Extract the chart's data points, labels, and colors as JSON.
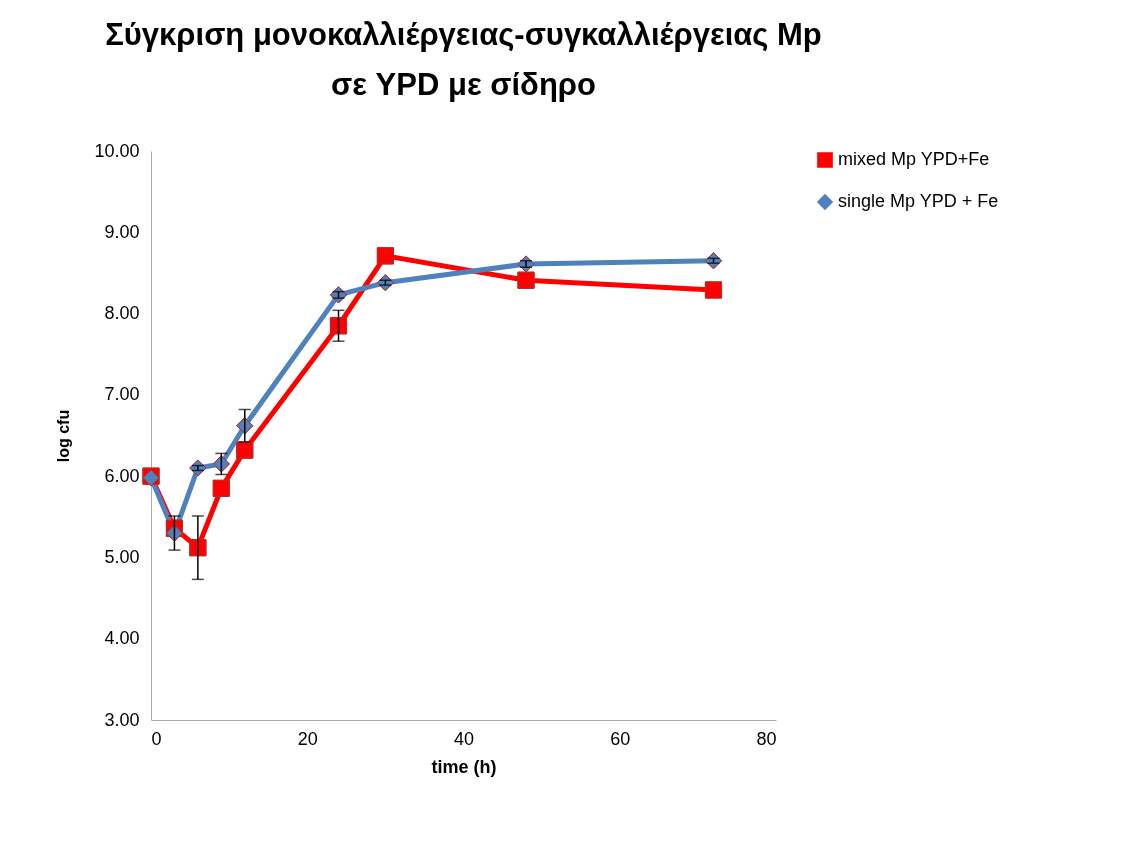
{
  "chart_data": {
    "type": "line",
    "title": "Σύγκριση μονοκαλλιέργειας-συγκαλλιέργειας Mp σε YPD με σίδηρο",
    "xlabel": "time (h)",
    "ylabel": "log cfu",
    "x": [
      0,
      3,
      6,
      9,
      12,
      24,
      30,
      48,
      72
    ],
    "series": [
      {
        "name": "mixed Mp YPD+Fe",
        "color": "#ff0000",
        "marker": "square",
        "values": [
          6.0,
          5.36,
          5.12,
          5.85,
          6.32,
          7.85,
          8.71,
          8.41,
          8.29
        ],
        "errors": [
          null,
          null,
          0.39,
          null,
          null,
          0.19,
          null,
          null,
          null
        ]
      },
      {
        "name": "single Mp YPD + Fe",
        "color": "#4f81bd",
        "marker": "diamond",
        "values": [
          5.98,
          5.3,
          6.1,
          6.15,
          6.62,
          8.23,
          8.38,
          8.61,
          8.65
        ],
        "errors": [
          null,
          0.21,
          0.03,
          0.13,
          0.2,
          0.04,
          0.03,
          0.04,
          0.03
        ]
      }
    ],
    "xlim": [
      0,
      80
    ],
    "xticks": [
      0,
      20,
      40,
      60,
      80
    ],
    "ylim": [
      3,
      10
    ],
    "yticks": [
      {
        "value": 3,
        "label": "3.00"
      },
      {
        "value": 4,
        "label": "4.00"
      },
      {
        "value": 5,
        "label": "5.00"
      },
      {
        "value": 6,
        "label": "6.00"
      },
      {
        "value": 7,
        "label": "7.00"
      },
      {
        "value": 8,
        "label": "8.00"
      },
      {
        "value": 9,
        "label": "9.00"
      },
      {
        "value": 10,
        "label": "10.00"
      }
    ],
    "grid": false,
    "legend": "right",
    "line_style": "solid"
  }
}
